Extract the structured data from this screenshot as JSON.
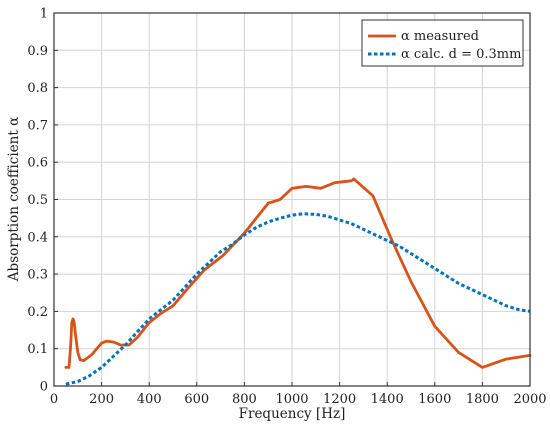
{
  "chart_data": {
    "type": "line",
    "title": "",
    "xlabel": "Frequency [Hz]",
    "ylabel": "Absorption coefficient α",
    "xlim": [
      0,
      2000
    ],
    "ylim": [
      0,
      1
    ],
    "x_ticks": [
      0,
      200,
      400,
      600,
      800,
      1000,
      1200,
      1400,
      1600,
      1800,
      2000
    ],
    "y_ticks": [
      0,
      0.1,
      0.2,
      0.3,
      0.4,
      0.5,
      0.6,
      0.7,
      0.8,
      0.9,
      1
    ],
    "grid": true,
    "legend_position": "top-right",
    "series": [
      {
        "name": "α measured",
        "color": "#d95319",
        "dash": "solid",
        "x": [
          50,
          63,
          70,
          75,
          80,
          85,
          90,
          100,
          110,
          125,
          140,
          160,
          180,
          200,
          220,
          250,
          280,
          315,
          350,
          400,
          450,
          500,
          560,
          630,
          710,
          800,
          900,
          950,
          1000,
          1060,
          1120,
          1180,
          1250,
          1260,
          1340,
          1420,
          1500,
          1600,
          1700,
          1800,
          1900,
          2000
        ],
        "y": [
          0.05,
          0.05,
          0.11,
          0.17,
          0.18,
          0.17,
          0.14,
          0.09,
          0.07,
          0.068,
          0.075,
          0.085,
          0.1,
          0.115,
          0.12,
          0.118,
          0.11,
          0.11,
          0.13,
          0.17,
          0.195,
          0.215,
          0.26,
          0.31,
          0.35,
          0.41,
          0.49,
          0.5,
          0.53,
          0.535,
          0.53,
          0.545,
          0.55,
          0.555,
          0.51,
          0.39,
          0.28,
          0.16,
          0.09,
          0.05,
          0.072,
          0.082
        ]
      },
      {
        "name": "α calc. d = 0.3mm",
        "color": "#0072bd",
        "dash": "dotted",
        "x": [
          50,
          100,
          150,
          200,
          250,
          300,
          350,
          400,
          450,
          500,
          550,
          600,
          650,
          700,
          750,
          800,
          850,
          900,
          950,
          1000,
          1050,
          1100,
          1150,
          1200,
          1250,
          1300,
          1350,
          1400,
          1450,
          1500,
          1550,
          1600,
          1650,
          1700,
          1750,
          1800,
          1850,
          1900,
          1950,
          2000
        ],
        "y": [
          0.005,
          0.012,
          0.028,
          0.05,
          0.08,
          0.11,
          0.145,
          0.18,
          0.205,
          0.23,
          0.265,
          0.3,
          0.33,
          0.36,
          0.38,
          0.405,
          0.425,
          0.44,
          0.45,
          0.458,
          0.462,
          0.46,
          0.455,
          0.445,
          0.435,
          0.42,
          0.405,
          0.39,
          0.375,
          0.355,
          0.335,
          0.315,
          0.295,
          0.275,
          0.26,
          0.245,
          0.23,
          0.215,
          0.205,
          0.2
        ]
      }
    ]
  }
}
